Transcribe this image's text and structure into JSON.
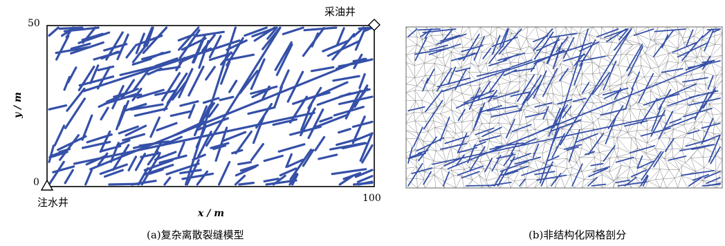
{
  "panel_a": {
    "caption": "(a)复杂离散裂缝模型",
    "y_tick_top": "50",
    "y_tick_bottom": "0",
    "x_tick_right": "100",
    "x_axis_label": "x / m",
    "y_axis_label": "y / m",
    "production_well_label": "采油井",
    "injection_well_label": "注水井",
    "fracture_color": "#3550a8",
    "production_well_icon": "diamond-icon",
    "injection_well_icon": "triangle-icon"
  },
  "panel_b": {
    "caption": "(b)非结构化网格剖分",
    "mesh_color": "#7a7a7a",
    "fracture_color": "#3550a8"
  }
}
